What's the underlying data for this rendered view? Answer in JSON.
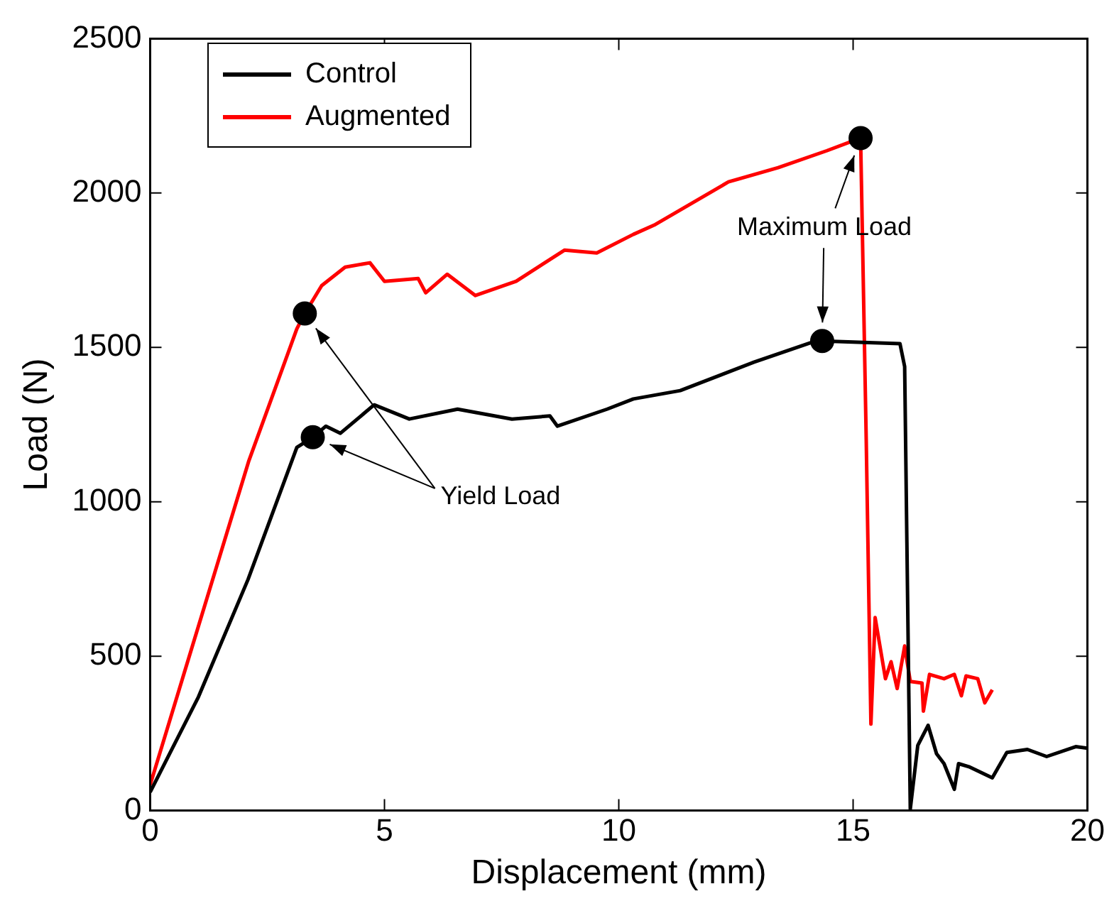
{
  "chart_data": {
    "type": "line",
    "xlabel": "Displacement (mm)",
    "ylabel": "Load (N)",
    "xlim": [
      0,
      20
    ],
    "xticks": [
      0,
      5,
      10,
      15,
      20
    ],
    "ylim": [
      0,
      2500
    ],
    "yticks": [
      0,
      500,
      1000,
      1500,
      2000,
      2500
    ],
    "grid": false,
    "legend": "top left",
    "marker": "none",
    "line_style": "solid",
    "series": [
      {
        "name": "Control",
        "color": "#000000",
        "x": [
          0,
          1.03,
          2.09,
          3.13,
          3.47,
          3.75,
          4.06,
          4.78,
          5.53,
          6.56,
          7.72,
          8.53,
          8.69,
          9.75,
          10.31,
          11.31,
          12.88,
          14.13,
          14.34,
          16.0,
          16.1,
          16.22,
          16.38,
          16.6,
          16.78,
          16.94,
          17.16,
          17.25,
          17.47,
          17.97,
          18.28,
          18.72,
          19.13,
          19.75,
          20
        ],
        "values": [
          60,
          368,
          749,
          1176,
          1209,
          1245,
          1222,
          1314,
          1268,
          1300,
          1268,
          1278,
          1245,
          1300,
          1333,
          1360,
          1452,
          1517,
          1521,
          1512,
          1438,
          5,
          211,
          276,
          184,
          152,
          69,
          152,
          142,
          106,
          188,
          198,
          175,
          207,
          202
        ]
      },
      {
        "name": "Augmented",
        "color": "#ff0000",
        "x": [
          0,
          1.03,
          2.1,
          3.13,
          3.3,
          3.66,
          4.16,
          4.69,
          5.0,
          5.72,
          5.88,
          6.34,
          6.94,
          7.81,
          8.84,
          9.53,
          10.31,
          10.78,
          12.34,
          13.4,
          14.44,
          15.16,
          15.28,
          15.38,
          15.47,
          15.69,
          15.81,
          15.94,
          16.1,
          16.22,
          16.47,
          16.5,
          16.63,
          16.94,
          17.16,
          17.31,
          17.41,
          17.66,
          17.81,
          17.97
        ],
        "values": [
          83,
          597,
          1130,
          1560,
          1610,
          1700,
          1760,
          1774,
          1714,
          1723,
          1677,
          1737,
          1668,
          1714,
          1815,
          1806,
          1866,
          1898,
          2036,
          2082,
          2137,
          2178,
          1200,
          280,
          625,
          427,
          482,
          395,
          533,
          418,
          413,
          322,
          441,
          427,
          441,
          372,
          436,
          427,
          349,
          391
        ]
      },
      {
        "type": "scatter",
        "color": "#000000",
        "marker": "circle",
        "x": [
          3.3,
          3.47,
          15.16,
          14.34
        ],
        "values": [
          1610,
          1209,
          2178,
          1521
        ]
      }
    ],
    "annotations": [
      "Yield Load",
      {
        "text": "Maximum Load",
        "x": 15.16,
        "y": 2178
      }
    ]
  }
}
